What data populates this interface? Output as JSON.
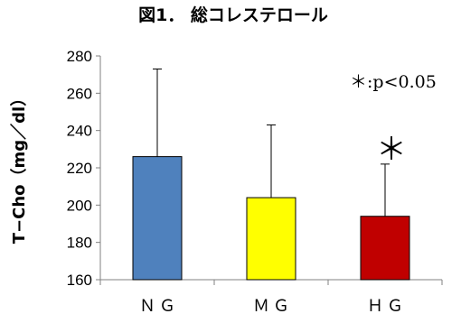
{
  "chart_data": {
    "type": "bar",
    "title": "図1．  総コレステロール",
    "ylabel": "T−Cho（mg／dl）",
    "xlabel": "",
    "categories": [
      "ＮＧ",
      "ＭＧ",
      "ＨＧ"
    ],
    "values": [
      226,
      204,
      194
    ],
    "error_bars": [
      47,
      39,
      28
    ],
    "colors": [
      "#4f81bd",
      "#ffff00",
      "#c00000"
    ],
    "ylim": [
      160,
      280
    ],
    "yticks": [
      160,
      180,
      200,
      220,
      240,
      260,
      280
    ],
    "grid": false,
    "annotation": "＊:p<0.05",
    "significance_marks": [
      "",
      "",
      "＊"
    ]
  }
}
